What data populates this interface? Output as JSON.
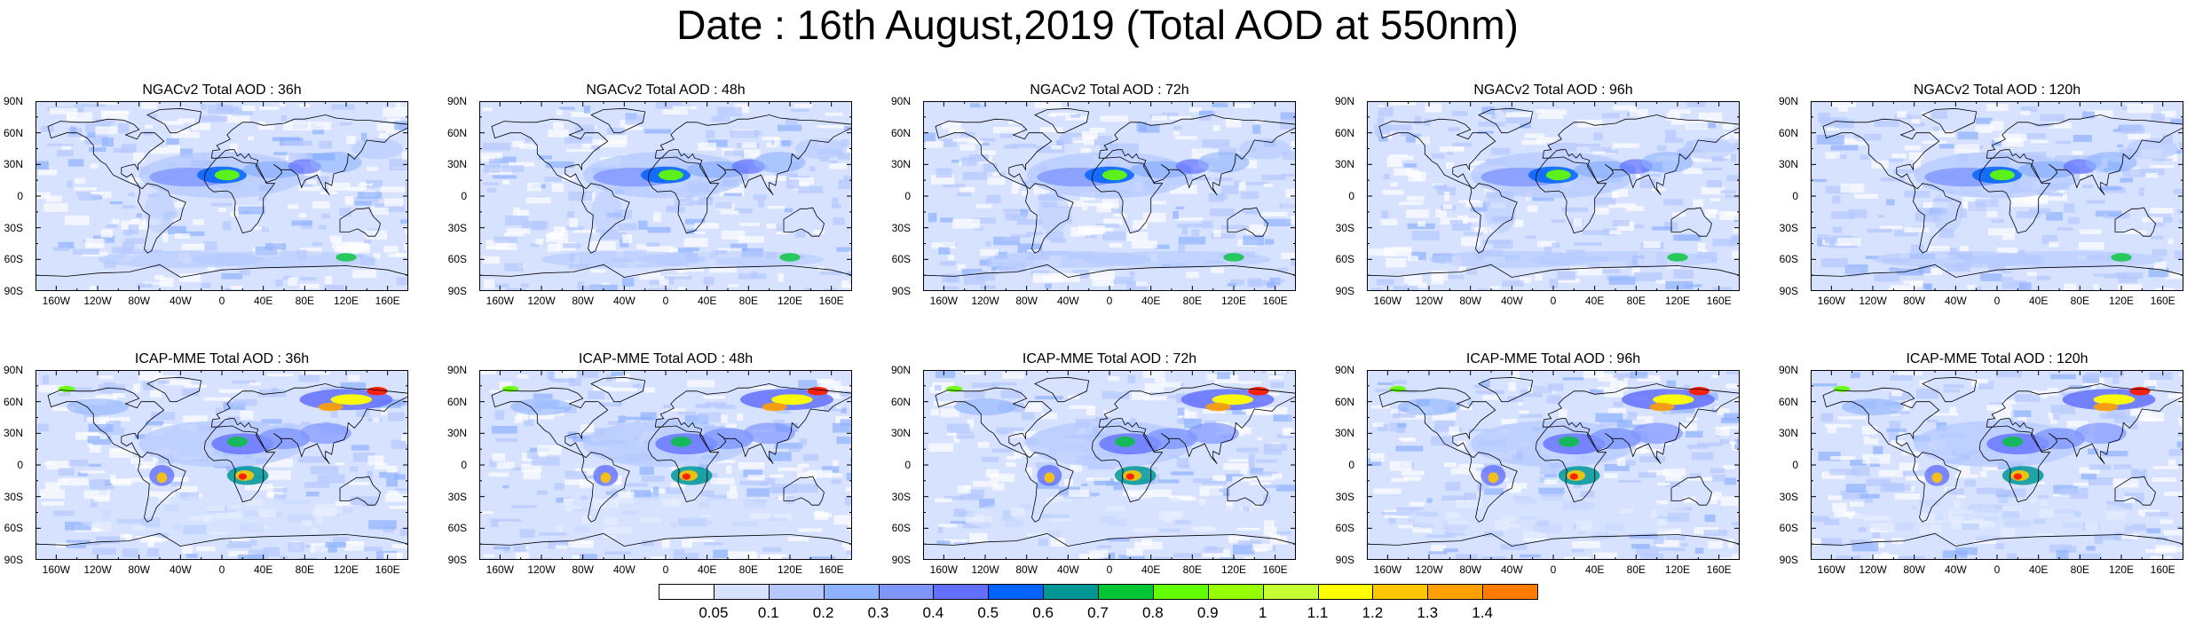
{
  "title": "Date : 16th August,2019 (Total AOD at 550nm)",
  "panels": [
    {
      "title": "NGACv2 Total AOD : 36h",
      "model": "NGACv2"
    },
    {
      "title": "NGACv2 Total AOD : 48h",
      "model": "NGACv2"
    },
    {
      "title": "NGACv2 Total AOD : 72h",
      "model": "NGACv2"
    },
    {
      "title": "NGACv2 Total AOD : 96h",
      "model": "NGACv2"
    },
    {
      "title": "NGACv2 Total AOD : 120h",
      "model": "NGACv2"
    },
    {
      "title": "ICAP-MME Total AOD : 36h",
      "model": "ICAP-MME"
    },
    {
      "title": "ICAP-MME Total AOD : 48h",
      "model": "ICAP-MME"
    },
    {
      "title": "ICAP-MME Total AOD : 72h",
      "model": "ICAP-MME"
    },
    {
      "title": "ICAP-MME Total AOD : 96h",
      "model": "ICAP-MME"
    },
    {
      "title": "ICAP-MME Total AOD : 120h",
      "model": "ICAP-MME"
    }
  ],
  "lat_labels": [
    "90N",
    "60N",
    "30N",
    "0",
    "30S",
    "60S",
    "90S"
  ],
  "lon_labels": [
    "160W",
    "120W",
    "80W",
    "40W",
    "0",
    "40E",
    "80E",
    "120E",
    "160E"
  ],
  "colorbar": {
    "labels": [
      "0.05",
      "0.1",
      "0.2",
      "0.3",
      "0.4",
      "0.5",
      "0.6",
      "0.7",
      "0.8",
      "0.9",
      "1",
      "1.1",
      "1.2",
      "1.3",
      "1.4"
    ],
    "colors": [
      "#ffffff",
      "#d6e2ff",
      "#b5c9ff",
      "#8eb2ff",
      "#7f96ff",
      "#6370ff",
      "#0063ff",
      "#009696",
      "#00c633",
      "#63ff00",
      "#96ff00",
      "#c6ff33",
      "#ffff00",
      "#ffc600",
      "#ffa000",
      "#ff7c00",
      "#ff1900"
    ]
  },
  "chart_data": {
    "type": "heatmap",
    "variable": "Total AOD at 550nm",
    "date": "16th August,2019",
    "models": [
      "NGACv2",
      "ICAP-MME"
    ],
    "forecast_hours": [
      "36h",
      "48h",
      "72h",
      "96h",
      "120h"
    ],
    "color_levels": [
      0.05,
      0.1,
      0.2,
      0.3,
      0.4,
      0.5,
      0.6,
      0.7,
      0.8,
      0.9,
      1,
      1.1,
      1.2,
      1.3,
      1.4
    ],
    "lat_range": [
      -90,
      90
    ],
    "lon_range": [
      -180,
      180
    ],
    "features": {
      "NGACv2": [
        "Saharan dust plume over North Africa and tropical Atlantic",
        "Southern Ocean sea-salt belt near 60S"
      ],
      "ICAP-MME": [
        "Siberian smoke maxima near 60N",
        "Central African smoke maximum near 10S",
        "South American smoke near 10S",
        "Saharan dust plume"
      ]
    }
  }
}
